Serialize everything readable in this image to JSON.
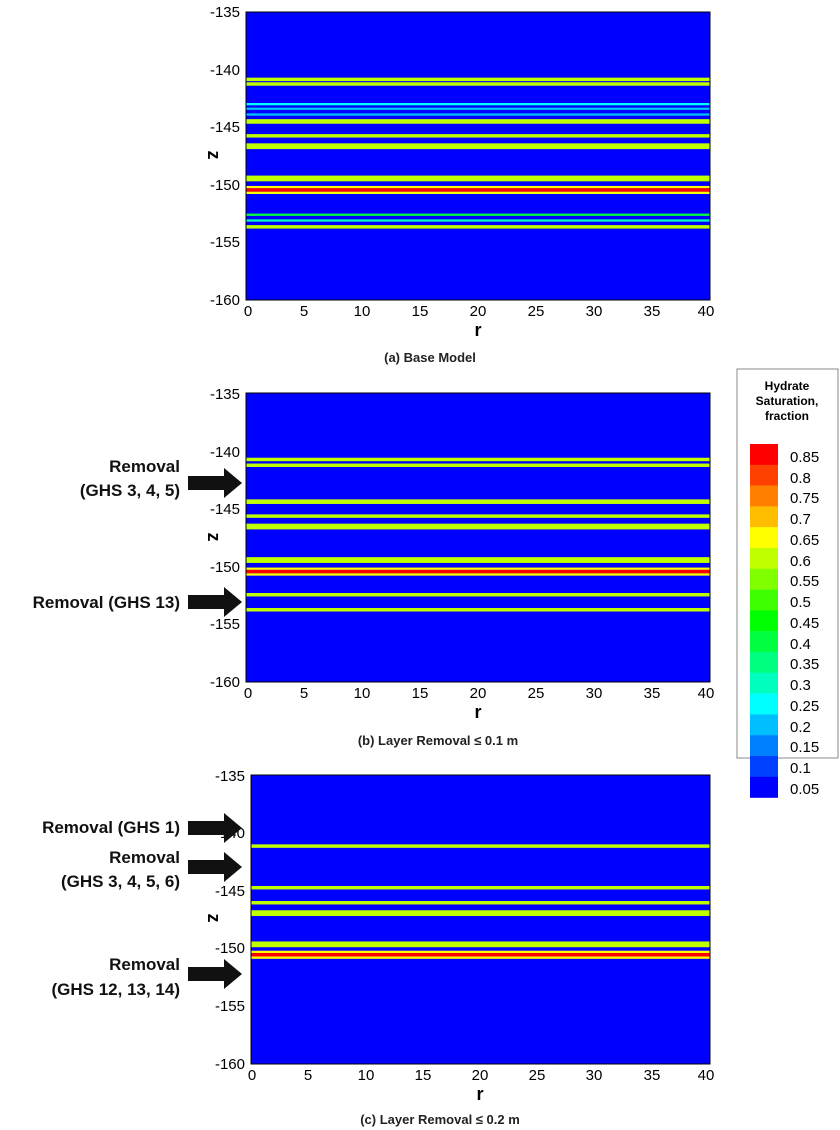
{
  "chart_data": [
    {
      "type": "heatmap",
      "title": "(a) Base Model",
      "xlabel": "r",
      "ylabel": "z",
      "xlim": [
        0,
        40
      ],
      "ylim": [
        -160,
        -135
      ],
      "xticks": [
        "0",
        "5",
        "10",
        "15",
        "20",
        "25",
        "30",
        "35",
        "40"
      ],
      "yticks": [
        "-135",
        "-140",
        "-145",
        "-150",
        "-155",
        "-160"
      ],
      "background_saturation": 0.05,
      "layers": [
        {
          "z_top": -140.7,
          "z_bottom": -141.0,
          "saturation": 0.6
        },
        {
          "z_top": -141.1,
          "z_bottom": -141.4,
          "saturation": 0.6
        },
        {
          "z_top": -142.9,
          "z_bottom": -143.1,
          "saturation": 0.25
        },
        {
          "z_top": -143.3,
          "z_bottom": -143.5,
          "saturation": 0.2
        },
        {
          "z_top": -143.8,
          "z_bottom": -144.0,
          "saturation": 0.2
        },
        {
          "z_top": -144.3,
          "z_bottom": -144.7,
          "saturation": 0.6
        },
        {
          "z_top": -145.6,
          "z_bottom": -145.9,
          "saturation": 0.6
        },
        {
          "z_top": -146.4,
          "z_bottom": -146.9,
          "saturation": 0.6
        },
        {
          "z_top": -149.2,
          "z_bottom": -149.7,
          "saturation": 0.6
        },
        {
          "z_top": -150.1,
          "z_bottom": -150.3,
          "saturation": 0.65
        },
        {
          "z_top": -150.3,
          "z_bottom": -150.6,
          "saturation": 0.85
        },
        {
          "z_top": -150.6,
          "z_bottom": -150.8,
          "saturation": 0.65
        },
        {
          "z_top": -152.5,
          "z_bottom": -152.7,
          "saturation": 0.4
        },
        {
          "z_top": -153.0,
          "z_bottom": -153.2,
          "saturation": 0.3
        },
        {
          "z_top": -153.5,
          "z_bottom": -153.8,
          "saturation": 0.6
        }
      ],
      "annotations": []
    },
    {
      "type": "heatmap",
      "title": "(b) Layer Removal ≤ 0.1 m",
      "xlabel": "r",
      "ylabel": "z",
      "xlim": [
        0,
        40
      ],
      "ylim": [
        -160,
        -135
      ],
      "xticks": [
        "0",
        "5",
        "10",
        "15",
        "20",
        "25",
        "30",
        "35",
        "40"
      ],
      "yticks": [
        "-135",
        "-140",
        "-145",
        "-150",
        "-155",
        "-160"
      ],
      "background_saturation": 0.05,
      "layers": [
        {
          "z_top": -140.6,
          "z_bottom": -140.9,
          "saturation": 0.6
        },
        {
          "z_top": -141.1,
          "z_bottom": -141.4,
          "saturation": 0.6
        },
        {
          "z_top": -144.2,
          "z_bottom": -144.6,
          "saturation": 0.6
        },
        {
          "z_top": -145.5,
          "z_bottom": -145.8,
          "saturation": 0.6
        },
        {
          "z_top": -146.3,
          "z_bottom": -146.8,
          "saturation": 0.6
        },
        {
          "z_top": -149.2,
          "z_bottom": -149.7,
          "saturation": 0.6
        },
        {
          "z_top": -150.1,
          "z_bottom": -150.3,
          "saturation": 0.65
        },
        {
          "z_top": -150.3,
          "z_bottom": -150.6,
          "saturation": 0.85
        },
        {
          "z_top": -150.6,
          "z_bottom": -150.8,
          "saturation": 0.65
        },
        {
          "z_top": -152.3,
          "z_bottom": -152.6,
          "saturation": 0.6
        },
        {
          "z_top": -153.6,
          "z_bottom": -153.9,
          "saturation": 0.6
        }
      ],
      "annotations": [
        {
          "lines": [
            "Removal",
            "(GHS 3, 4, 5)"
          ],
          "z": -141.7
        },
        {
          "lines": [
            "Removal (GHS 13)"
          ],
          "z": -152.8
        }
      ]
    },
    {
      "type": "heatmap",
      "title": "(c) Layer Removal ≤ 0.2 m",
      "xlabel": "r",
      "ylabel": "z",
      "xlim": [
        0,
        40
      ],
      "ylim": [
        -160,
        -135
      ],
      "xticks": [
        "0",
        "5",
        "10",
        "15",
        "20",
        "25",
        "30",
        "35",
        "40"
      ],
      "yticks": [
        "-135",
        "-140",
        "-145",
        "-150",
        "-155",
        "-160"
      ],
      "background_saturation": 0.05,
      "layers": [
        {
          "z_top": -141.0,
          "z_bottom": -141.3,
          "saturation": 0.6
        },
        {
          "z_top": -144.6,
          "z_bottom": -144.9,
          "saturation": 0.6
        },
        {
          "z_top": -145.9,
          "z_bottom": -146.2,
          "saturation": 0.6
        },
        {
          "z_top": -146.7,
          "z_bottom": -147.2,
          "saturation": 0.6
        },
        {
          "z_top": -149.4,
          "z_bottom": -149.9,
          "saturation": 0.6
        },
        {
          "z_top": -150.2,
          "z_bottom": -150.4,
          "saturation": 0.65
        },
        {
          "z_top": -150.4,
          "z_bottom": -150.7,
          "saturation": 0.85
        },
        {
          "z_top": -150.7,
          "z_bottom": -150.9,
          "saturation": 0.65
        }
      ],
      "annotations": [
        {
          "lines": [
            "Removal (GHS 1)"
          ],
          "z": -139.3
        },
        {
          "lines": [
            "Removal",
            "(GHS 3, 4, 5, 6)"
          ],
          "z": -142.2
        },
        {
          "lines": [
            "Removal",
            "(GHS 12, 13, 14)"
          ],
          "z": -152.2
        }
      ]
    }
  ],
  "legend": {
    "title_lines": [
      "Hydrate",
      "Saturation,",
      "fraction"
    ],
    "levels": [
      "0.85",
      "0.8",
      "0.75",
      "0.7",
      "0.65",
      "0.6",
      "0.55",
      "0.5",
      "0.45",
      "0.4",
      "0.35",
      "0.3",
      "0.25",
      "0.2",
      "0.15",
      "0.1",
      "0.05"
    ],
    "colors": [
      "#ff0000",
      "#ff4000",
      "#ff8000",
      "#ffbf00",
      "#ffff00",
      "#bfff00",
      "#80ff00",
      "#40ff00",
      "#00ff00",
      "#00ff40",
      "#00ff80",
      "#00ffbf",
      "#00ffff",
      "#00bfff",
      "#0080ff",
      "#0040ff",
      "#0000ff"
    ]
  }
}
